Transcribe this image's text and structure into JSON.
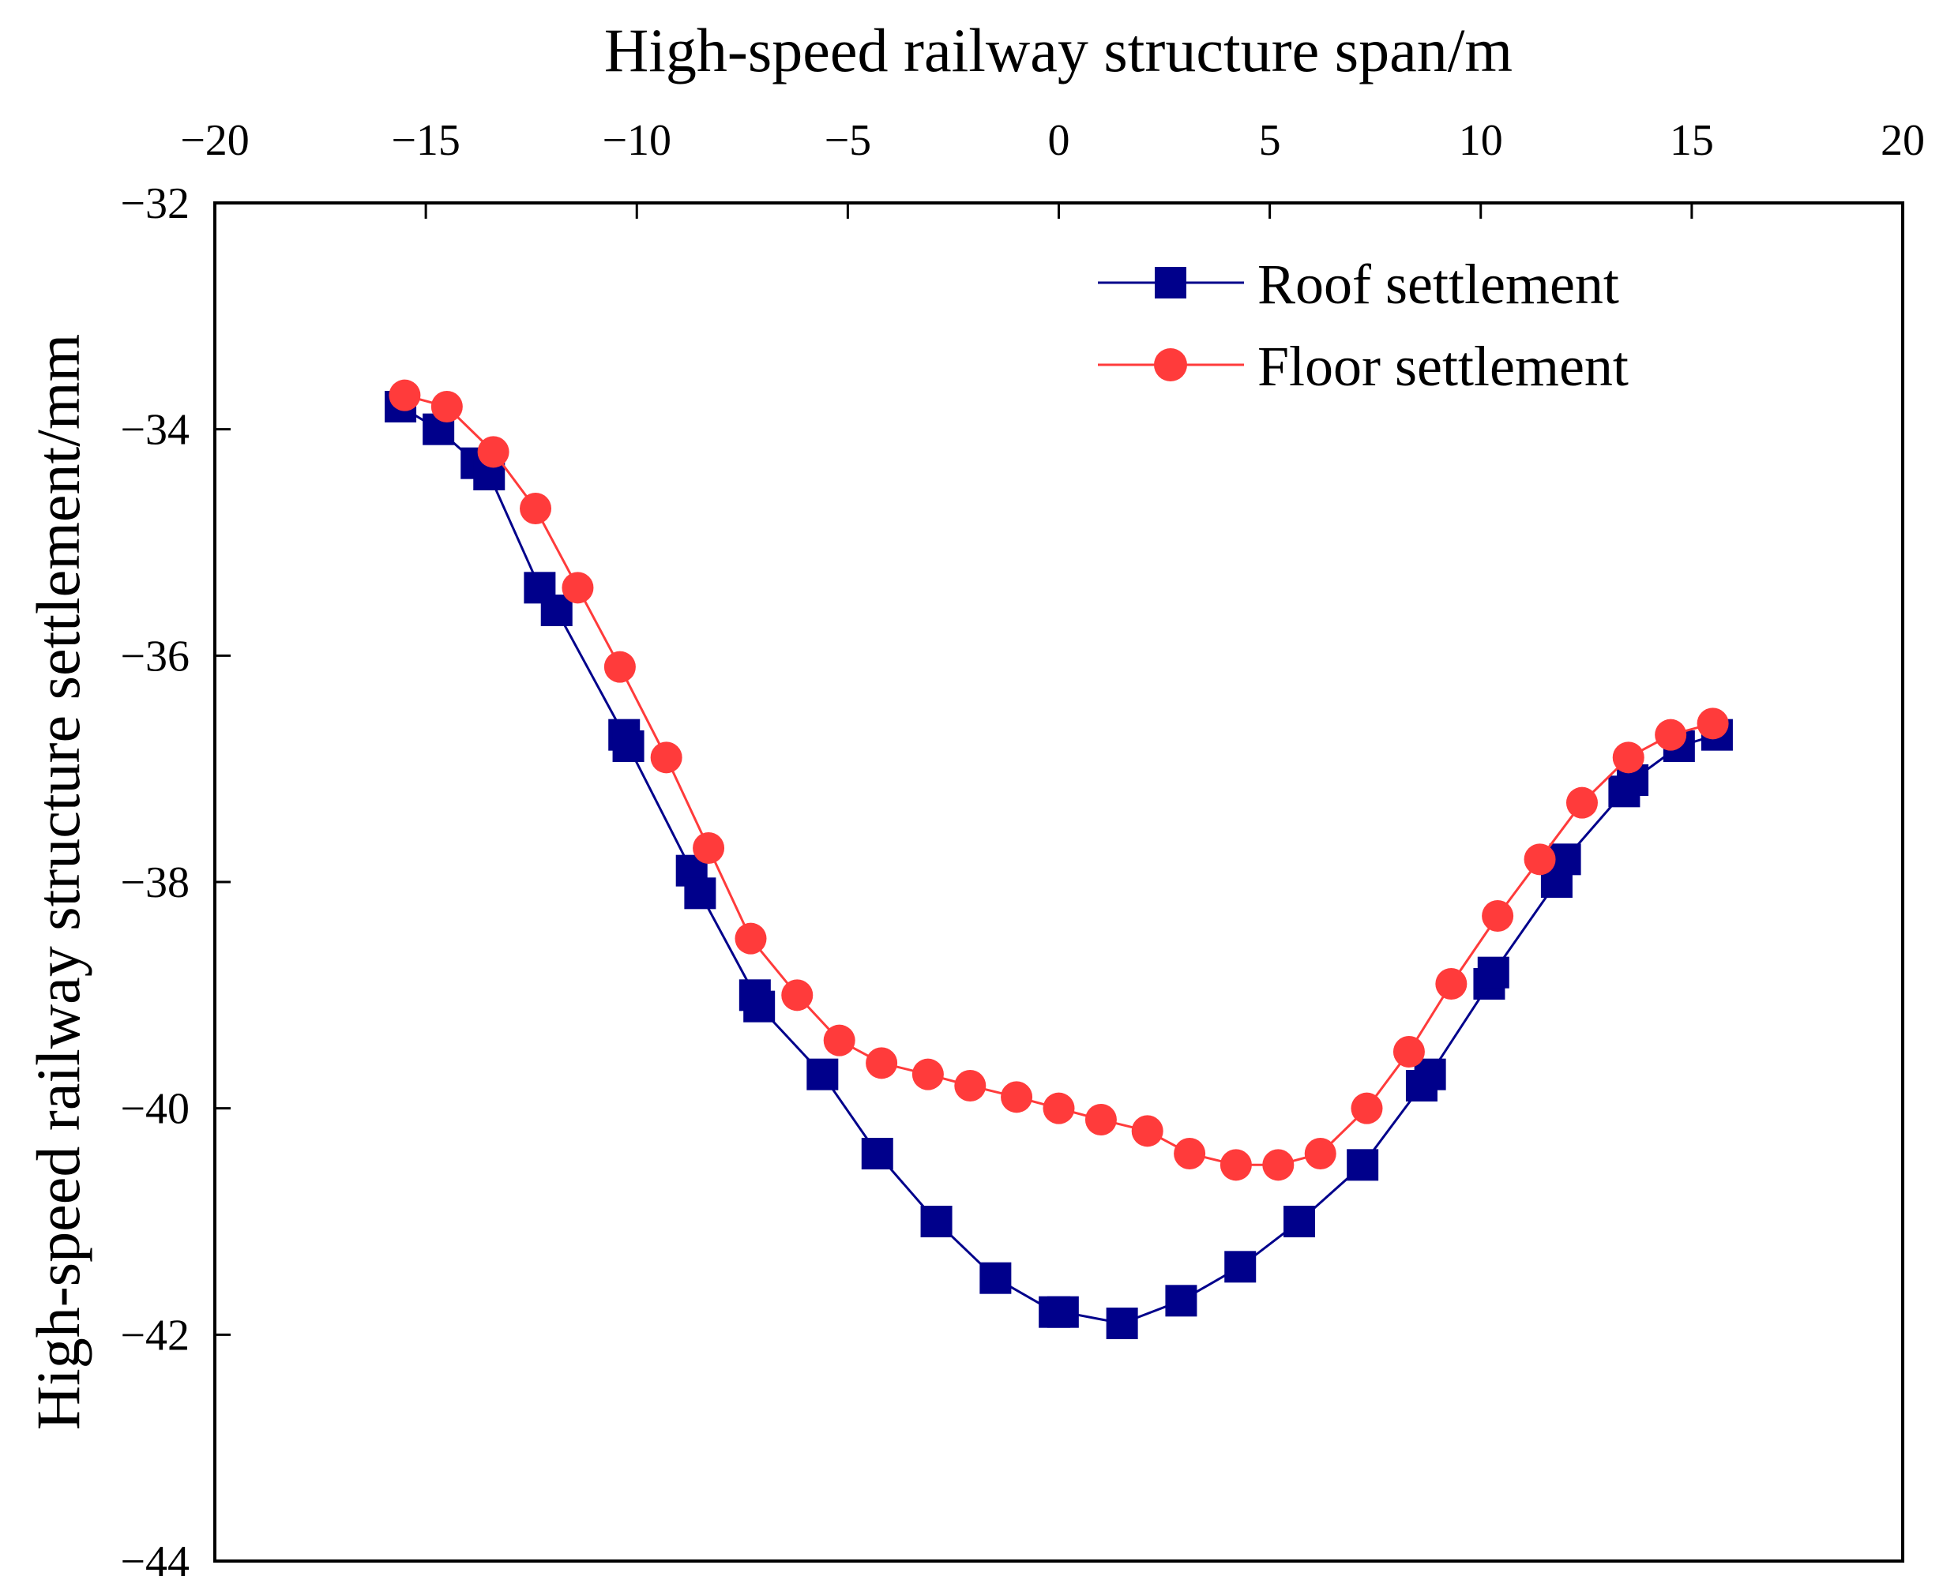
{
  "chart_data": {
    "type": "line",
    "title": "",
    "xlabel": "High-speed railway structure span/m",
    "ylabel": "High-speed railway structure settlement/mm",
    "xlim": [
      -20,
      20
    ],
    "ylim": [
      -44,
      -32
    ],
    "xticks": [
      -20,
      -15,
      -10,
      -5,
      0,
      5,
      10,
      15,
      20
    ],
    "xtick_labels": [
      "−20",
      "−15",
      "−10",
      "−5",
      "0",
      "5",
      "10",
      "15",
      "20"
    ],
    "yticks": [
      -44,
      -42,
      -40,
      -38,
      -36,
      -34,
      -32
    ],
    "ytick_labels": [
      "−44",
      "−42",
      "−40",
      "−38",
      "−36",
      "−34",
      "−32"
    ],
    "grid": false,
    "legend_position": "top-right",
    "series": [
      {
        "name": "Roof settlement",
        "color": "#00008B",
        "marker": "square",
        "x": [
          -15.6,
          -14.7,
          -13.8,
          -13.5,
          -12.3,
          -11.9,
          -10.3,
          -10.2,
          -8.7,
          -8.5,
          -7.2,
          -7.1,
          -5.6,
          -4.3,
          -2.9,
          -1.5,
          -0.1,
          0.1,
          1.5,
          2.9,
          4.3,
          5.7,
          7.2,
          8.6,
          8.8,
          10.2,
          10.3,
          11.8,
          12.0,
          13.4,
          13.6,
          14.7,
          15.6
        ],
        "y": [
          -33.8,
          -34.0,
          -34.3,
          -34.4,
          -35.4,
          -35.6,
          -36.7,
          -36.8,
          -37.9,
          -38.1,
          -39.0,
          -39.1,
          -39.7,
          -40.4,
          -41.0,
          -41.5,
          -41.8,
          -41.8,
          -41.9,
          -41.7,
          -41.4,
          -41.0,
          -40.5,
          -39.8,
          -39.7,
          -38.9,
          -38.8,
          -38.0,
          -37.8,
          -37.2,
          -37.1,
          -36.8,
          -36.7
        ]
      },
      {
        "name": "Floor settlement",
        "color": "#FF3B3B",
        "marker": "circle",
        "x": [
          -15.5,
          -14.5,
          -13.4,
          -12.4,
          -11.4,
          -10.4,
          -9.3,
          -8.3,
          -7.3,
          -6.2,
          -5.2,
          -4.2,
          -3.1,
          -2.1,
          -1.0,
          0.0,
          1.0,
          2.1,
          3.1,
          4.2,
          5.2,
          6.2,
          7.3,
          8.3,
          9.3,
          10.4,
          11.4,
          12.4,
          13.5,
          14.5,
          15.5
        ],
        "y": [
          -33.7,
          -33.8,
          -34.2,
          -34.7,
          -35.4,
          -36.1,
          -36.9,
          -37.7,
          -38.5,
          -39.0,
          -39.4,
          -39.6,
          -39.7,
          -39.8,
          -39.9,
          -40.0,
          -40.1,
          -40.2,
          -40.4,
          -40.5,
          -40.5,
          -40.4,
          -40.0,
          -39.5,
          -38.9,
          -38.3,
          -37.8,
          -37.3,
          -36.9,
          -36.7,
          -36.6
        ]
      }
    ]
  }
}
